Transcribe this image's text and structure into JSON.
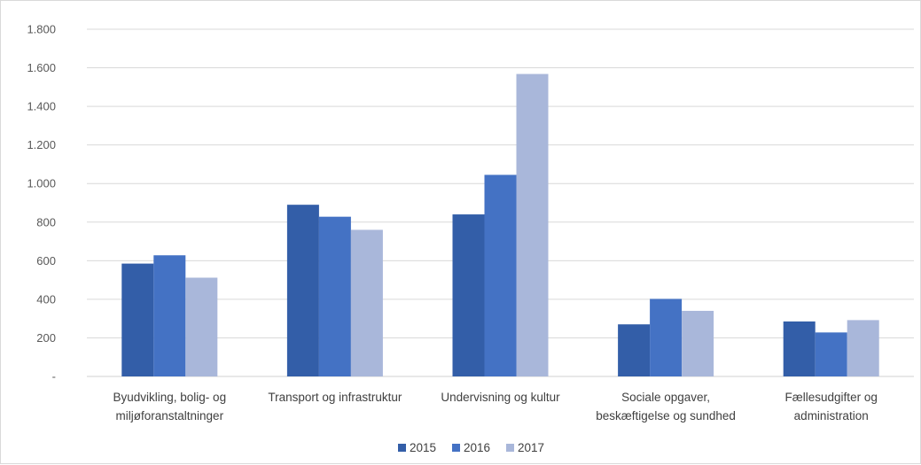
{
  "chart_data": {
    "type": "bar",
    "categories": [
      [
        "Byudvikling, bolig- og",
        "miljøforanstaltninger"
      ],
      [
        "Transport og infrastruktur"
      ],
      [
        "Undervisning og kultur"
      ],
      [
        "Sociale opgaver,",
        "beskæftigelse og sundhed"
      ],
      [
        "Fællesudgifter og",
        "administration"
      ]
    ],
    "series": [
      {
        "name": "2015",
        "color": "#335ea8",
        "values": [
          585,
          890,
          840,
          270,
          285
        ]
      },
      {
        "name": "2016",
        "color": "#4472c4",
        "values": [
          628,
          828,
          1045,
          402,
          228
        ]
      },
      {
        "name": "2017",
        "color": "#a9b7da",
        "values": [
          512,
          760,
          1568,
          340,
          292
        ]
      }
    ],
    "yticks": [
      "-",
      "200",
      "400",
      "600",
      "800",
      "1.000",
      "1.200",
      "1.400",
      "1.600",
      "1.800"
    ],
    "ylim": [
      0,
      1800
    ],
    "grid": true,
    "legend_position": "bottom"
  }
}
